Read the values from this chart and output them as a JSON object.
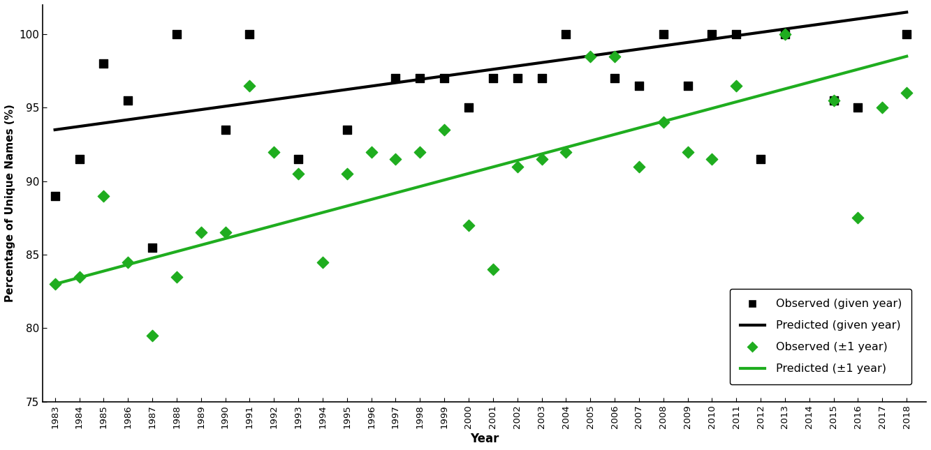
{
  "black_scatter_x": [
    1983,
    1984,
    1985,
    1986,
    1987,
    1988,
    1990,
    1991,
    1993,
    1995,
    1997,
    1998,
    1999,
    2000,
    2001,
    2002,
    2003,
    2004,
    2006,
    2007,
    2008,
    2009,
    2010,
    2011,
    2012,
    2013,
    2015,
    2016,
    2018
  ],
  "black_scatter_y": [
    89,
    91.5,
    98,
    95.5,
    85.5,
    100,
    93.5,
    100,
    91.5,
    93.5,
    97,
    97,
    97,
    95,
    97,
    97,
    97,
    100,
    97,
    96.5,
    100,
    96.5,
    100,
    100,
    91.5,
    100,
    95.5,
    95,
    100
  ],
  "green_scatter_x": [
    1983,
    1984,
    1985,
    1986,
    1987,
    1988,
    1989,
    1990,
    1991,
    1992,
    1993,
    1994,
    1995,
    1996,
    1997,
    1998,
    1999,
    2000,
    2001,
    2002,
    2003,
    2004,
    2005,
    2006,
    2007,
    2008,
    2009,
    2010,
    2011,
    2013,
    2015,
    2016,
    2017,
    2018
  ],
  "green_scatter_y": [
    83,
    83.5,
    89,
    84.5,
    79.5,
    83.5,
    86.5,
    86.5,
    96.5,
    92,
    90.5,
    84.5,
    90.5,
    92,
    91.5,
    92,
    93.5,
    87,
    84,
    91,
    91.5,
    92,
    98.5,
    98.5,
    91,
    94,
    92,
    91.5,
    96.5,
    100,
    95.5,
    87.5,
    95,
    96
  ],
  "black_line_x": [
    1983,
    2018
  ],
  "black_line_y": [
    93.5,
    101.5
  ],
  "green_line_x": [
    1983,
    2018
  ],
  "green_line_y": [
    83.0,
    98.5
  ],
  "xlim": [
    1982.5,
    2018.8
  ],
  "ylim": [
    75,
    102
  ],
  "yticks": [
    75,
    80,
    85,
    90,
    95,
    100
  ],
  "xticks": [
    1983,
    1984,
    1985,
    1986,
    1987,
    1988,
    1989,
    1990,
    1991,
    1992,
    1993,
    1994,
    1995,
    1996,
    1997,
    1998,
    1999,
    2000,
    2001,
    2002,
    2003,
    2004,
    2005,
    2006,
    2007,
    2008,
    2009,
    2010,
    2011,
    2012,
    2013,
    2014,
    2015,
    2016,
    2017,
    2018
  ],
  "xlabel": "Year",
  "ylabel": "Percentage of Unique Names (%)",
  "black_color": "#000000",
  "green_color": "#1fad1f",
  "legend_labels_sq": "Observed (given year)",
  "legend_labels_bline": "Predicted (given year)",
  "legend_labels_dia": "Observed (±1 year)",
  "legend_labels_gline": "Predicted (±1 year)",
  "marker_size_square": 70,
  "marker_size_diamond": 70,
  "line_width": 3.0
}
